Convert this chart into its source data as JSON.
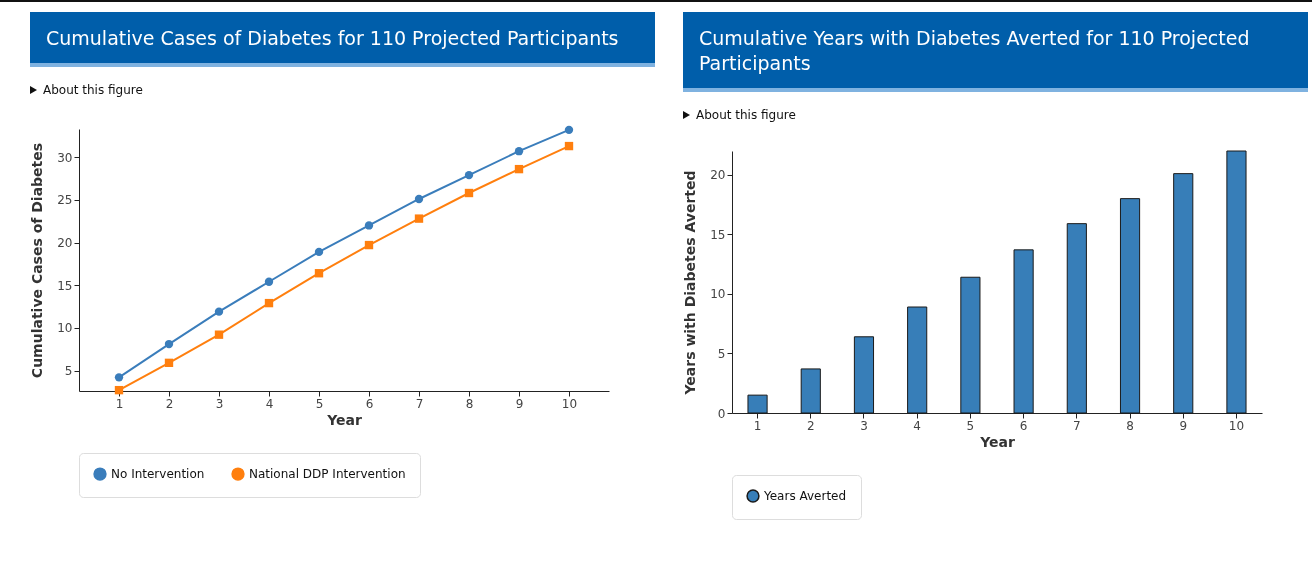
{
  "chart_data": [
    {
      "type": "line",
      "title": "Cumulative Cases of Diabetes for 110 Projected Participants",
      "annotations": [
        "About this figure"
      ],
      "xlabel": "Year",
      "ylabel": "Cumulative Cases of Diabetes",
      "x": [
        1,
        2,
        3,
        4,
        5,
        6,
        7,
        8,
        9,
        10
      ],
      "xlim": [
        0.2,
        10.8
      ],
      "xticks": [
        1,
        2,
        3,
        4,
        5,
        6,
        7,
        8,
        9,
        10
      ],
      "ylim": [
        2.6,
        33.3
      ],
      "yticks": [
        5,
        10,
        15,
        20,
        25,
        30
      ],
      "legend": "bottom",
      "series": [
        {
          "name": "No Intervention",
          "color": "#3a7dbb",
          "marker": "circle",
          "values": [
            4.2,
            8.1,
            11.9,
            15.4,
            18.9,
            22.0,
            25.1,
            27.9,
            30.7,
            33.2
          ]
        },
        {
          "name": "National DDP Intervention",
          "color": "#ff7f0e",
          "marker": "square",
          "values": [
            2.7,
            5.9,
            9.2,
            12.9,
            16.4,
            19.7,
            22.8,
            25.8,
            28.6,
            31.3
          ]
        }
      ]
    },
    {
      "type": "bar",
      "title": "Cumulative Years with Diabetes Averted for 110 Projected Participants",
      "annotations": [
        "About this figure"
      ],
      "xlabel": "Year",
      "ylabel": "Years with Diabetes Averted",
      "categories": [
        "1",
        "2",
        "3",
        "4",
        "5",
        "6",
        "7",
        "8",
        "9",
        "10"
      ],
      "ylim": [
        0,
        22
      ],
      "yticks": [
        0,
        5,
        10,
        15,
        20
      ],
      "legend": "bottom",
      "series": [
        {
          "name": "Years Averted",
          "color": "#377eb8",
          "values": [
            1.5,
            3.7,
            6.4,
            8.9,
            11.4,
            13.7,
            15.9,
            18.0,
            20.1,
            22.0
          ]
        }
      ]
    }
  ]
}
